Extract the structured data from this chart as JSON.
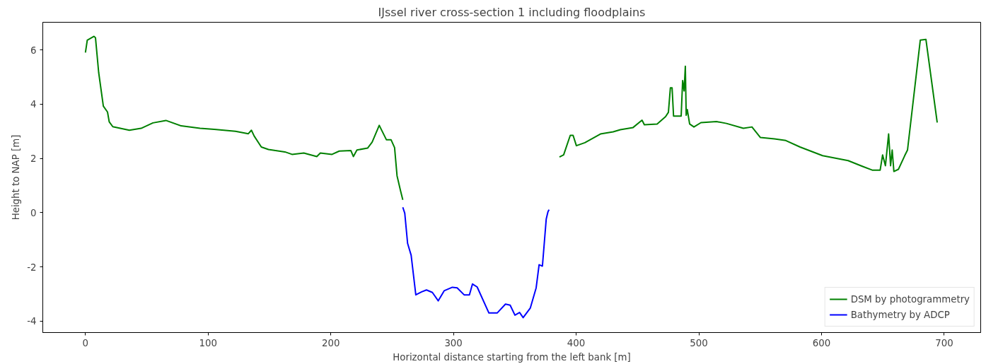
{
  "chart_data": {
    "type": "line",
    "title": "IJssel river cross-section 1 including floodplains",
    "xlabel": "Horizontal distance starting from the left bank [m]",
    "ylabel": "Height to NAP [m]",
    "xlim": [
      -34.75,
      729.75
    ],
    "ylim": [
      -4.42,
      7.02
    ],
    "xticks": [
      0,
      100,
      200,
      300,
      400,
      500,
      600,
      700
    ],
    "yticks": [
      -4,
      -2,
      0,
      2,
      4,
      6
    ],
    "grid": false,
    "legend": "bottom right",
    "line_style": "solid",
    "marker": "none",
    "series": [
      {
        "name": "DSM by photogrammetry",
        "color": "#008000",
        "x": [
          0,
          1.5,
          7,
          8.2,
          10.8,
          14.6,
          18,
          19.4,
          22.3,
          35.8,
          45.4,
          55,
          65.6,
          78,
          93.4,
          105,
          122.3,
          132.8,
          135.3,
          137.6,
          143.4,
          149.2,
          162.6,
          168.4,
          178,
          188.6,
          191.5,
          201,
          206.9,
          216.4,
          218.4,
          221.3,
          230,
          233.7,
          239.5,
          245.3,
          249.1,
          252,
          254,
          256.8,
          258.7,
          320,
          386.4,
          389.8,
          395.2,
          397.5,
          400.2,
          407.1,
          419.8,
          430.2,
          436,
          446.4,
          453.7,
          455.6,
          466,
          472.9,
          475.2,
          476.8,
          478.2,
          479.4,
          485.6,
          486.8,
          488,
          489,
          489.7,
          490.6,
          492.5,
          496,
          501.7,
          514.4,
          522.5,
          536.3,
          543.3,
          550.2,
          561.7,
          570.9,
          582.5,
          600.9,
          621.7,
          633.2,
          641.3,
          647.8,
          649.8,
          652.1,
          654.7,
          656.3,
          657.6,
          659,
          662.7,
          667.8,
          670.1,
          680.5,
          685.1,
          694.3
        ],
        "values": [
          5.9,
          6.36,
          6.5,
          6.45,
          5.17,
          3.93,
          3.71,
          3.35,
          3.17,
          3.04,
          3.11,
          3.31,
          3.4,
          3.2,
          3.11,
          3.07,
          3.0,
          2.91,
          3.04,
          2.82,
          2.42,
          2.33,
          2.24,
          2.15,
          2.2,
          2.07,
          2.2,
          2.15,
          2.27,
          2.29,
          2.07,
          2.31,
          2.38,
          2.6,
          3.22,
          2.69,
          2.69,
          2.4,
          1.36,
          0.82,
          0.47,
          null,
          2.05,
          2.13,
          2.85,
          2.85,
          2.47,
          2.58,
          2.9,
          2.98,
          3.06,
          3.14,
          3.41,
          3.24,
          3.27,
          3.54,
          3.7,
          4.6,
          4.6,
          3.56,
          3.56,
          4.87,
          4.49,
          5.4,
          3.59,
          3.8,
          3.27,
          3.16,
          3.32,
          3.36,
          3.29,
          3.11,
          3.16,
          2.77,
          2.72,
          2.66,
          2.42,
          2.1,
          1.92,
          1.71,
          1.57,
          1.57,
          2.13,
          1.73,
          2.9,
          1.73,
          2.31,
          1.52,
          1.6,
          2.1,
          2.31,
          6.36,
          6.39,
          3.32
        ]
      },
      {
        "name": "Bathymetry by ADCP",
        "color": "#0000ff",
        "x": [
          258.7,
          260.3,
          262.6,
          265.5,
          269.3,
          274.1,
          278,
          282.8,
          287.6,
          292.4,
          299.1,
          303,
          308.7,
          313,
          315.5,
          319.3,
          328.9,
          335.6,
          342.4,
          346.2,
          350.1,
          353.9,
          356.8,
          362.6,
          367.4,
          369.8,
          372.5,
          375.6,
          377,
          377.9
        ],
        "values": [
          0.2,
          -0.02,
          -1.13,
          -1.57,
          -3.03,
          -2.92,
          -2.85,
          -2.94,
          -3.25,
          -2.88,
          -2.75,
          -2.77,
          -3.03,
          -3.03,
          -2.63,
          -2.74,
          -3.7,
          -3.7,
          -3.37,
          -3.41,
          -3.78,
          -3.68,
          -3.87,
          -3.52,
          -2.77,
          -1.92,
          -1.97,
          -0.24,
          0.03,
          0.11
        ]
      }
    ]
  }
}
